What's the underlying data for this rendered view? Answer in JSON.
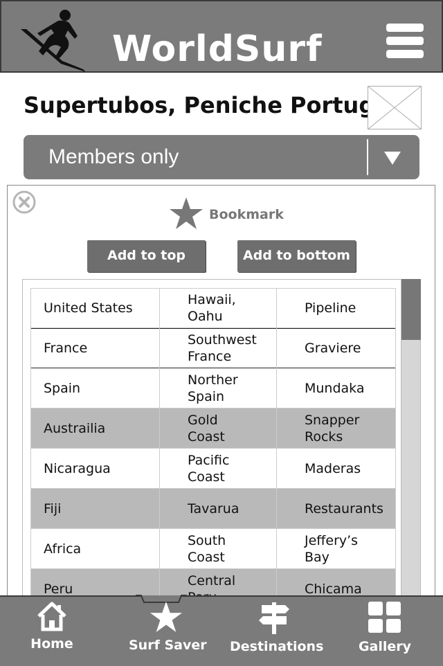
{
  "header": {
    "brand": "WorldSurf",
    "logo_icon": "surfer-logo-icon",
    "menu_icon": "hamburger-menu-icon"
  },
  "spot": {
    "title": "Supertubos, Peniche Portugal",
    "thumbnail_icon": "image-placeholder-icon"
  },
  "access_select": {
    "value": "Members only",
    "arrow_icon": "chevron-down-icon"
  },
  "panel": {
    "close_icon": "close-icon",
    "bookmark_label": "Bookmark",
    "bookmark_icon": "star-icon",
    "add_top_label": "Add to top",
    "add_bottom_label": "Add to bottom"
  },
  "spots_table": {
    "rows": [
      {
        "country": "United States",
        "region": "Hawaii,\nOahu",
        "spot": "Pipeline",
        "shaded": false,
        "selected": false
      },
      {
        "country": "France",
        "region": "Southwest\nFrance",
        "spot": "Graviere",
        "shaded": false,
        "selected": true
      },
      {
        "country": "Spain",
        "region": "Norther\nSpain",
        "spot": "Mundaka",
        "shaded": false,
        "selected": false
      },
      {
        "country": "Austrailia",
        "region": "Gold\nCoast",
        "spot": "Snapper\nRocks",
        "shaded": true,
        "selected": false
      },
      {
        "country": "Nicaragua",
        "region": "Pacific\nCoast",
        "spot": "Maderas",
        "shaded": false,
        "selected": false
      },
      {
        "country": "Fiji",
        "region": "Tavarua",
        "spot": "Restaurants",
        "shaded": true,
        "selected": false
      },
      {
        "country": "Africa",
        "region": "South\nCoast",
        "spot": "Jeffery’s\nBay",
        "shaded": false,
        "selected": false
      },
      {
        "country": "Peru",
        "region": "Central\nPeru",
        "spot": "Chicama",
        "shaded": true,
        "selected": false
      }
    ]
  },
  "tabbar": {
    "tabs": [
      {
        "label": "Home",
        "icon": "home-icon"
      },
      {
        "label": "Surf Saver",
        "icon": "star-icon"
      },
      {
        "label": "Destinations",
        "icon": "signpost-icon"
      },
      {
        "label": "Gallery",
        "icon": "grid-icon"
      }
    ],
    "active_tab": "Surf Saver"
  },
  "colors": {
    "bar": "#7b7b7b",
    "button": "#6e6e6e",
    "shaded_row": "#b9b9b9",
    "text": "#111111"
  }
}
